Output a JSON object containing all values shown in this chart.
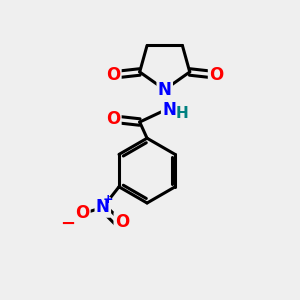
{
  "bg_color": "#efefef",
  "bond_color": "#000000",
  "bond_width": 2.2,
  "N_color": "#0000ff",
  "O_color": "#ff0000",
  "H_color": "#008080",
  "font_size_atoms": 12,
  "fig_size": [
    3.0,
    3.0
  ],
  "dpi": 100,
  "xlim": [
    0,
    10
  ],
  "ylim": [
    0,
    10
  ]
}
